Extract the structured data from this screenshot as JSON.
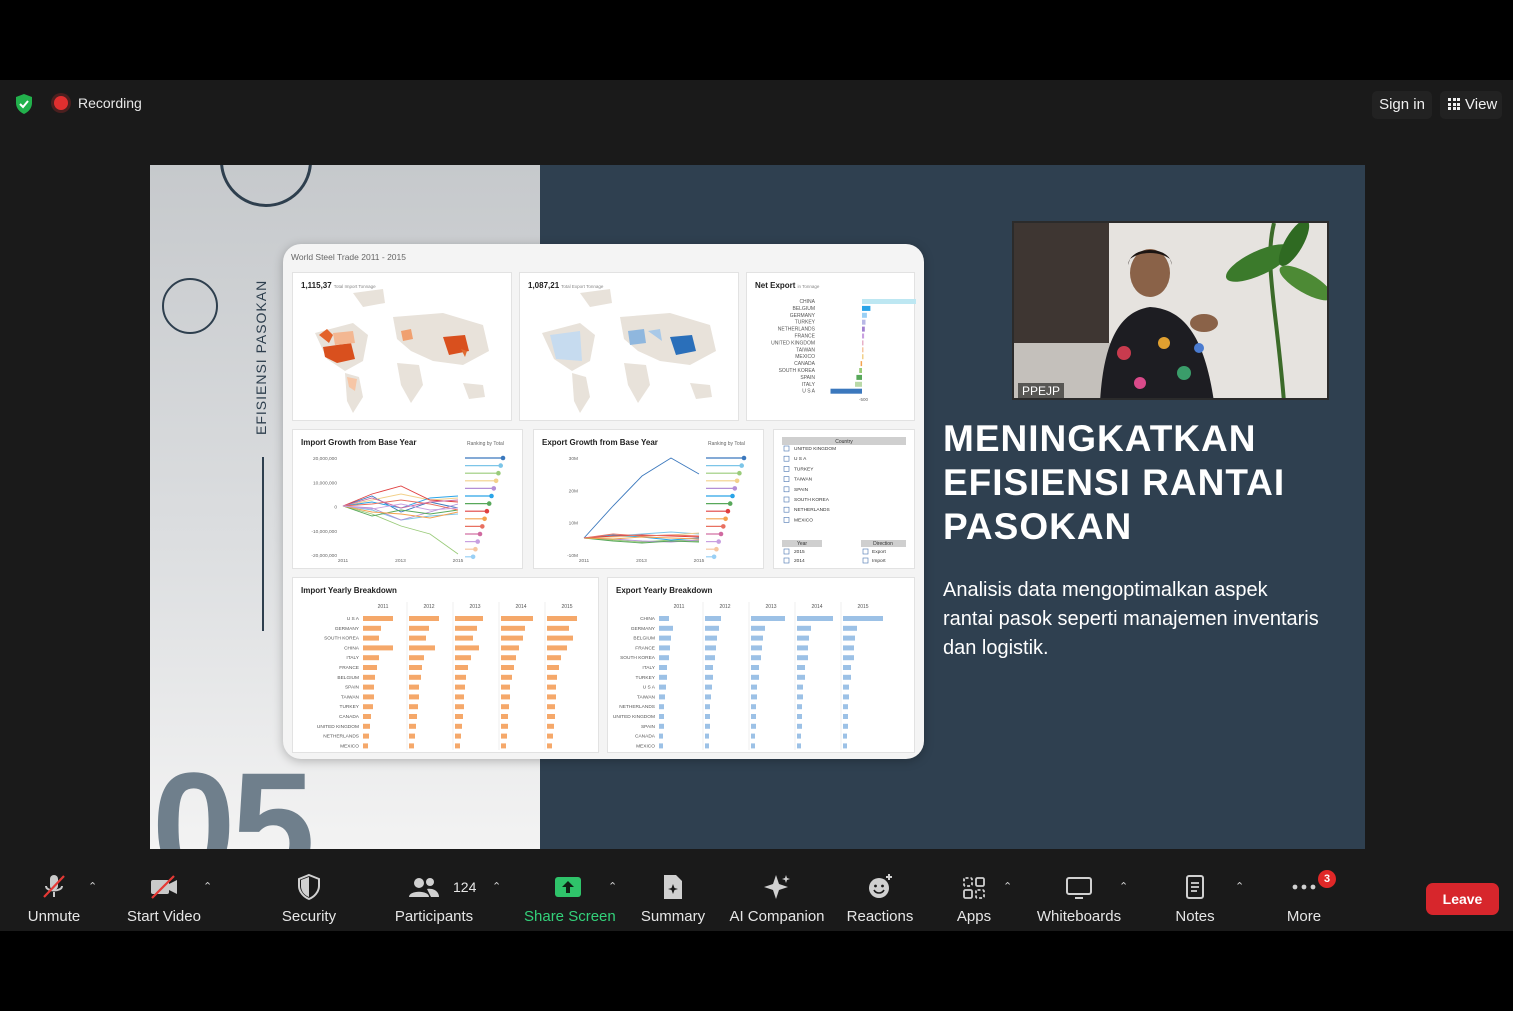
{
  "topbar": {
    "recording_label": "Recording",
    "sign_in_label": "Sign in",
    "view_label": "View"
  },
  "slide": {
    "vertical_title": "EFISIENSI PASOKAN",
    "big_number": "05",
    "title": "MENINGKATKAN EFISIENSI RANTAI PASOKAN",
    "body": "Analisis data mengoptimalkan aspek rantai pasok seperti manajemen inventaris dan logistik."
  },
  "dashboard": {
    "title": "World Steel Trade 2011 - 2015",
    "import_map": {
      "value": "1,115,37",
      "caption": "Total Import Tonnage"
    },
    "export_map": {
      "value": "1,087,21",
      "caption": "Total Export Tonnage"
    },
    "net_export": {
      "title": "Net Export",
      "caption": "in Tonnage",
      "countries": [
        "CHINA",
        "BELGIUM",
        "GERMANY",
        "TURKEY",
        "NETHERLANDS",
        "FRANCE",
        "UNITED KINGDOM",
        "TAIWAN",
        "MEXICO",
        "CANADA",
        "SOUTH KOREA",
        "SPAIN",
        "ITALY",
        "U S A"
      ],
      "values": [
        90,
        12,
        7,
        5,
        4,
        3,
        2,
        1,
        1,
        -2,
        -4,
        -8,
        -10,
        -45
      ],
      "axis_label": "-500"
    },
    "import_growth": {
      "title": "Import Growth from Base Year",
      "ranking_label": "Ranking by Total",
      "y_ticks": [
        "20,000,000",
        "10,000,000",
        "0",
        "-10,000,000",
        "-20,000,000"
      ],
      "x_ticks": [
        "2011",
        "2013",
        "2015"
      ]
    },
    "export_growth": {
      "title": "Export Growth from Base Year",
      "ranking_label": "Ranking by Total",
      "y_ticks": [
        "30M",
        "20M",
        "10M",
        "-10M"
      ],
      "x_ticks": [
        "2011",
        "2013",
        "2015"
      ]
    },
    "filters": {
      "country_header": "Country",
      "countries": [
        "UNITED KINGDOM",
        "U S A",
        "TURKEY",
        "TAIWAN",
        "SPAIN",
        "SOUTH KOREA",
        "NETHERLANDS",
        "MEXICO"
      ],
      "year_header": "Year",
      "years": [
        "2015",
        "2014"
      ],
      "direction_header": "Direction",
      "directions": [
        "Export",
        "Import"
      ]
    },
    "import_breakdown": {
      "title": "Import Yearly Breakdown",
      "years": [
        "2011",
        "2012",
        "2013",
        "2014",
        "2015"
      ],
      "countries": [
        "U S A",
        "GERMANY",
        "SOUTH KOREA",
        "CHINA",
        "ITALY",
        "FRANCE",
        "BELGIUM",
        "SPAIN",
        "TAIWAN",
        "TURKEY",
        "CANADA",
        "UNITED KINGDOM",
        "NETHERLANDS",
        "MEXICO"
      ],
      "values": [
        [
          30,
          30,
          28,
          32,
          30
        ],
        [
          18,
          20,
          22,
          24,
          22
        ],
        [
          16,
          17,
          18,
          22,
          26
        ],
        [
          30,
          26,
          24,
          18,
          20
        ],
        [
          16,
          15,
          16,
          15,
          14
        ],
        [
          14,
          13,
          13,
          13,
          12
        ],
        [
          12,
          12,
          11,
          11,
          10
        ],
        [
          11,
          10,
          10,
          9,
          9
        ],
        [
          11,
          10,
          9,
          9,
          9
        ],
        [
          10,
          9,
          9,
          8,
          8
        ],
        [
          8,
          8,
          8,
          7,
          8
        ],
        [
          7,
          7,
          7,
          7,
          7
        ],
        [
          6,
          6,
          6,
          6,
          6
        ],
        [
          5,
          5,
          5,
          5,
          5
        ]
      ]
    },
    "export_breakdown": {
      "title": "Export Yearly Breakdown",
      "years": [
        "2011",
        "2012",
        "2013",
        "2014",
        "2015"
      ],
      "countries": [
        "CHINA",
        "GERMANY",
        "BELGIUM",
        "FRANCE",
        "SOUTH KOREA",
        "ITALY",
        "TURKEY",
        "U S A",
        "TAIWAN",
        "NETHERLANDS",
        "UNITED KINGDOM",
        "SPAIN",
        "CANADA",
        "MEXICO"
      ],
      "values": [
        [
          10,
          16,
          34,
          36,
          40
        ],
        [
          14,
          14,
          14,
          14,
          14
        ],
        [
          12,
          12,
          12,
          12,
          12
        ],
        [
          11,
          11,
          11,
          11,
          11
        ],
        [
          10,
          10,
          10,
          11,
          11
        ],
        [
          8,
          8,
          8,
          8,
          8
        ],
        [
          8,
          8,
          8,
          8,
          8
        ],
        [
          7,
          7,
          6,
          6,
          6
        ],
        [
          6,
          6,
          6,
          6,
          6
        ],
        [
          5,
          5,
          5,
          5,
          5
        ],
        [
          5,
          5,
          5,
          5,
          5
        ],
        [
          5,
          5,
          5,
          5,
          5
        ],
        [
          4,
          4,
          4,
          4,
          4
        ],
        [
          4,
          4,
          4,
          4,
          4
        ]
      ]
    }
  },
  "video": {
    "participant_name": "PPEJP"
  },
  "toolbar": {
    "unmute": "Unmute",
    "start_video": "Start Video",
    "security": "Security",
    "participants": "Participants",
    "participant_count": "124",
    "share_screen": "Share Screen",
    "summary": "Summary",
    "ai_companion": "AI Companion",
    "reactions": "Reactions",
    "apps": "Apps",
    "whiteboards": "Whiteboards",
    "notes": "Notes",
    "more": "More",
    "more_badge": "3",
    "leave": "Leave"
  },
  "colors": {
    "import_orange": "#f5a86a",
    "export_blue": "#9cc1e6",
    "leave_red": "#d7262c",
    "share_green": "#33d17a",
    "slide_dark": "#2f4050"
  }
}
